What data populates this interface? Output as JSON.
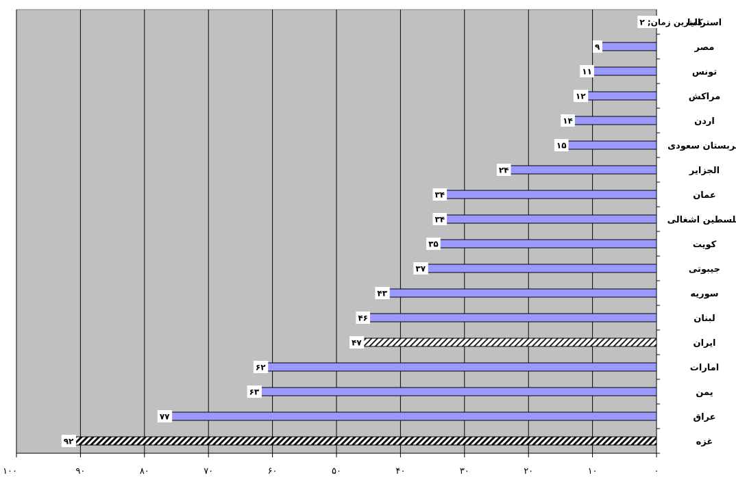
{
  "chart_data": {
    "type": "bar",
    "orientation": "horizontal",
    "x_axis_reversed": true,
    "xlim": [
      0,
      100
    ],
    "x_ticks": [
      0,
      10,
      20,
      30,
      40,
      50,
      60,
      70,
      80,
      90,
      100
    ],
    "x_tick_labels": [
      "۰",
      "۱۰",
      "۲۰",
      "۳۰",
      "۴۰",
      "۵۰",
      "۶۰",
      "۷۰",
      "۸۰",
      "۹۰",
      "۱۰۰"
    ],
    "grid": true,
    "category_axis_side": "right",
    "title": "",
    "xlabel": "",
    "ylabel": "",
    "categories": [
      "استرالیا",
      "مصر",
      "تونس",
      "مراکش",
      "اردن",
      "عربستان سعودی",
      "الجزایر",
      "عمان",
      "فلسطین اشغالی",
      "کویت",
      "جیبوتی",
      "سوریه",
      "لبنان",
      "ایران",
      "امارات",
      "یمن",
      "عراق",
      "غزه"
    ],
    "values": [
      2,
      9,
      11,
      12,
      14,
      15,
      24,
      34,
      34,
      35,
      37,
      43,
      46,
      47,
      62,
      63,
      77,
      92
    ],
    "value_labels": [
      "کمترین زمان; ۲",
      "۹",
      "۱۱",
      "۱۲",
      "۱۴",
      "۱۵",
      "۲۴",
      "۳۴",
      "۳۴",
      "۳۵",
      "۳۷",
      "۴۳",
      "۴۶",
      "۴۷",
      "۶۲",
      "۶۳",
      "۷۷",
      "۹۲"
    ],
    "bar_styles": [
      "solid",
      "solid",
      "solid",
      "solid",
      "solid",
      "solid",
      "solid",
      "solid",
      "solid",
      "solid",
      "solid",
      "solid",
      "solid",
      "hatched-light",
      "solid",
      "solid",
      "solid",
      "hatched-dark"
    ],
    "colors": {
      "bar_fill": "#9999ff",
      "bar_stroke": "#000000",
      "plot_background": "#c0c0c0",
      "gridline": "#000000",
      "hatch_light_bg": "#ffffff",
      "hatch_dark_bg": "#ffffff",
      "hatch_stroke": "#000000"
    }
  }
}
